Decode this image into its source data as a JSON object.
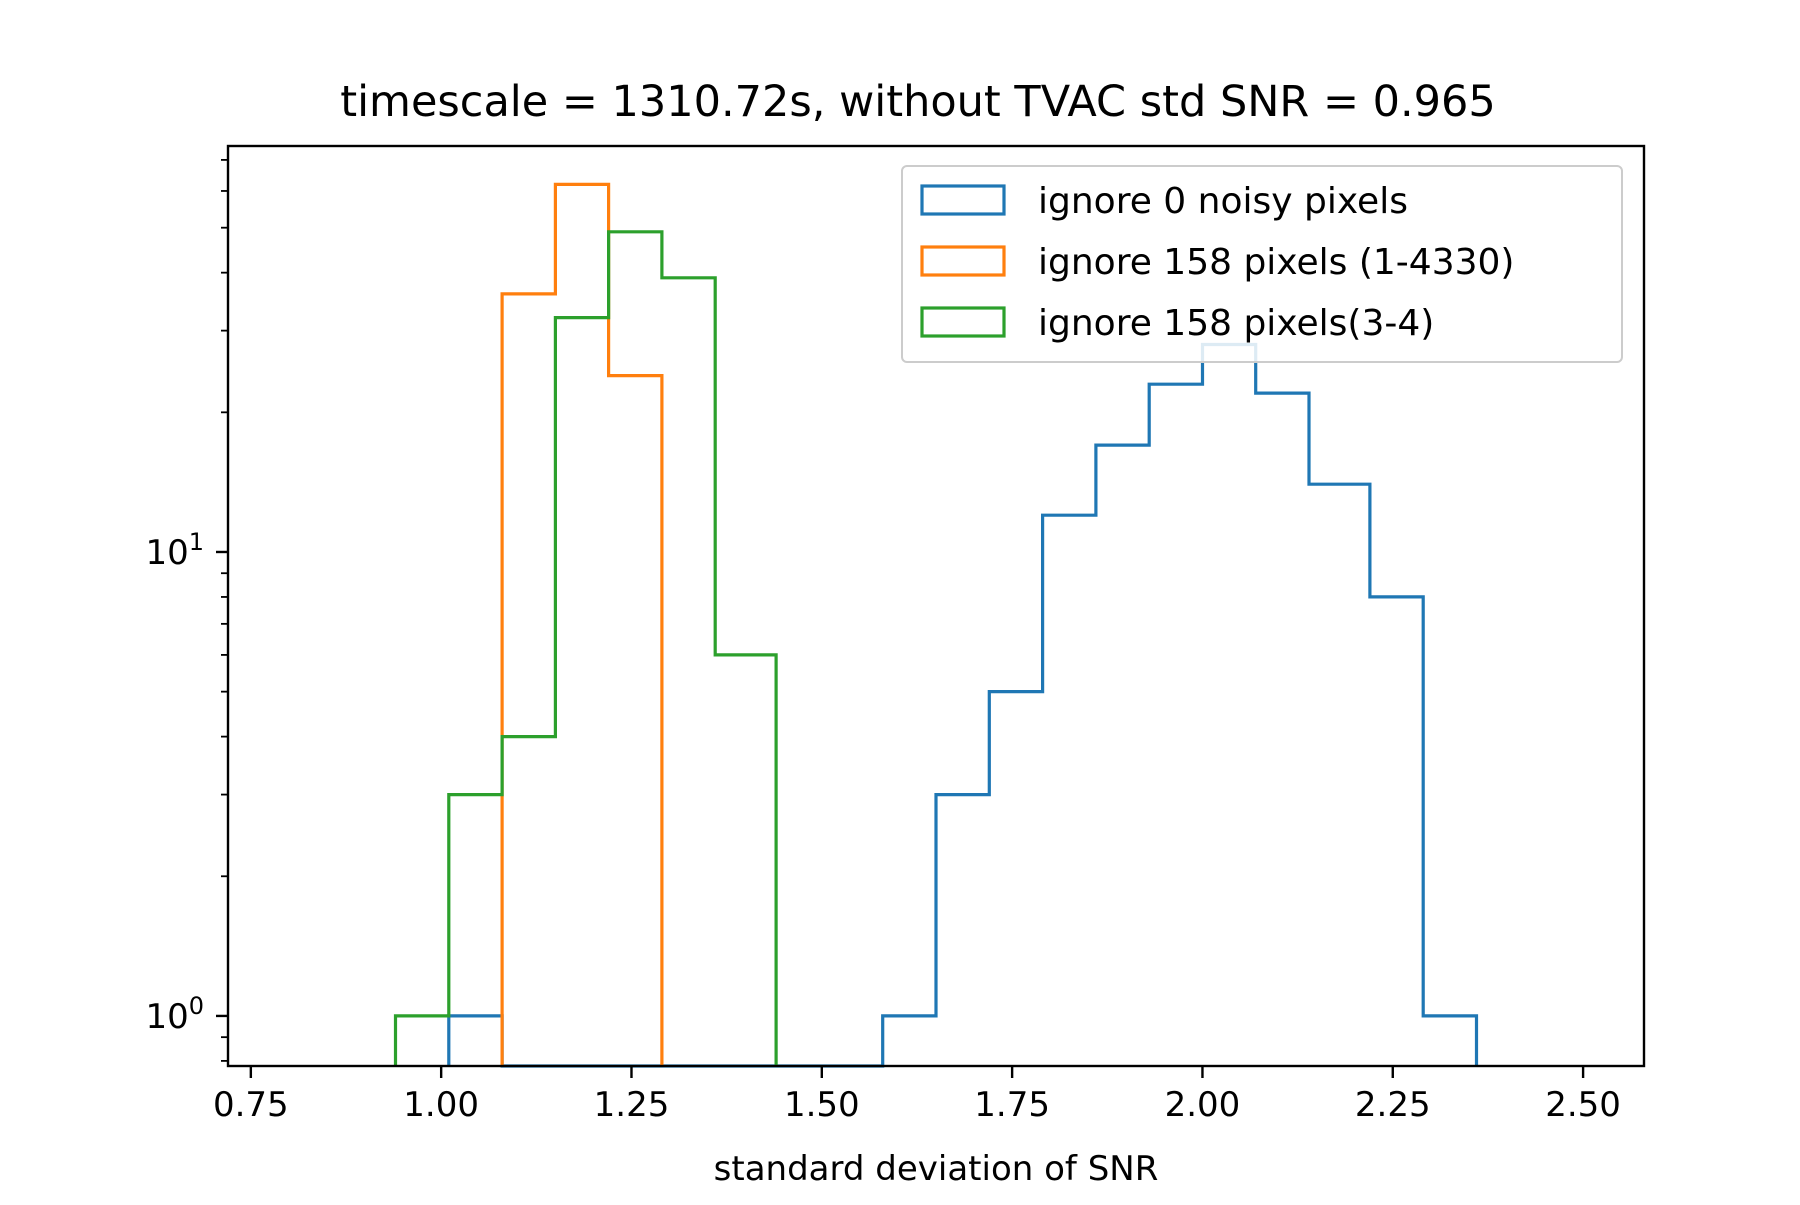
{
  "chart_data": {
    "type": "histogram",
    "title": "timescale = 1310.72s, without TVAC std SNR = 0.965",
    "xlabel": "standard deviation of SNR",
    "ylabel": "",
    "xscale": "linear",
    "yscale": "log",
    "xlim": [
      0.72,
      2.58
    ],
    "ylim": [
      0.78,
      75
    ],
    "xticks": [
      0.75,
      1.0,
      1.25,
      1.5,
      1.75,
      2.0,
      2.25,
      2.5
    ],
    "xtick_labels": [
      "0.75",
      "1.00",
      "1.25",
      "1.50",
      "1.75",
      "2.00",
      "2.25",
      "2.50"
    ],
    "yticks": [
      1,
      10
    ],
    "ytick_labels": [
      {
        "base": "10",
        "exp": "0"
      },
      {
        "base": "10",
        "exp": "1"
      }
    ],
    "legend_position": "top-right",
    "series": [
      {
        "name": "ignore 0 noisy pixels",
        "color": "#1f77b4",
        "bin_edges": [
          1.01,
          1.08,
          1.15,
          1.22,
          1.29,
          1.36,
          1.44,
          1.51,
          1.58,
          1.65,
          1.72,
          1.79,
          1.86,
          1.93,
          2.0,
          2.07,
          2.14,
          2.22,
          2.29,
          2.36
        ],
        "counts": [
          1,
          0,
          0,
          0,
          0,
          0,
          0,
          0,
          1,
          3,
          5,
          12,
          17,
          23,
          28,
          22,
          14,
          8,
          1
        ]
      },
      {
        "name": "ignore 158 pixels (1-4330)",
        "color": "#ff7f0e",
        "bin_edges": [
          1.08,
          1.15,
          1.22,
          1.29
        ],
        "counts": [
          36,
          62,
          24
        ]
      },
      {
        "name": "ignore 158 pixels(3-4)",
        "color": "#2ca02c",
        "bin_edges": [
          0.94,
          1.01,
          1.08,
          1.15,
          1.22,
          1.29,
          1.36,
          1.44
        ],
        "counts": [
          1,
          3,
          4,
          32,
          49,
          39,
          6
        ]
      }
    ]
  }
}
